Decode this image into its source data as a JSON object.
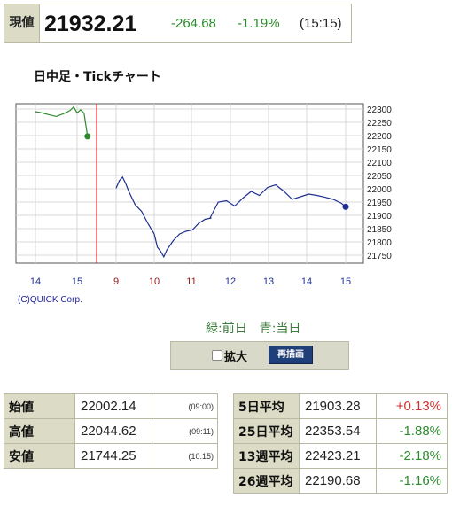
{
  "header": {
    "label": "現値",
    "price": "21932.21",
    "change": "-264.68",
    "change_pct": "-1.19%",
    "time": "(15:15)"
  },
  "chart_title": "日中足・Tickチャート",
  "chart_data": {
    "type": "line",
    "ylim": [
      21720,
      22320
    ],
    "yticks": [
      "22300",
      "22250",
      "22200",
      "22150",
      "22100",
      "22050",
      "22000",
      "21950",
      "21900",
      "21850",
      "21800",
      "21750"
    ],
    "xticks": [
      "14",
      "15",
      "9",
      "10",
      "11",
      "12",
      "13",
      "14",
      "15"
    ],
    "grid": true,
    "series": [
      {
        "name": "前日",
        "color": "#2e8b2e",
        "x": [
          "14:00",
          "14:10",
          "14:20",
          "14:30",
          "14:40",
          "14:45",
          "14:50",
          "14:55",
          "15:00",
          "15:05",
          "15:10",
          "15:15"
        ],
        "y": [
          22290,
          22285,
          22278,
          22272,
          22282,
          22288,
          22295,
          22308,
          22285,
          22297,
          22285,
          22197
        ]
      },
      {
        "name": "当日",
        "color": "#1f2f8f",
        "x": [
          "09:00",
          "09:05",
          "09:10",
          "09:15",
          "09:20",
          "09:30",
          "09:40",
          "09:50",
          "10:00",
          "10:05",
          "10:10",
          "10:15",
          "10:20",
          "10:30",
          "10:40",
          "10:50",
          "11:00",
          "11:10",
          "11:20",
          "11:30",
          "12:30",
          "12:35",
          "12:40",
          "12:50",
          "13:00",
          "13:10",
          "13:20",
          "13:30",
          "13:40",
          "13:50",
          "14:00",
          "14:10",
          "14:20",
          "14:30",
          "14:40",
          "14:50",
          "15:00",
          "15:10",
          "15:15"
        ],
        "y": [
          22002,
          22030,
          22044,
          22020,
          21990,
          21940,
          21915,
          21870,
          21830,
          21780,
          21765,
          21744,
          21770,
          21805,
          21830,
          21840,
          21845,
          21870,
          21885,
          21890,
          21890,
          21920,
          21950,
          21955,
          21935,
          21965,
          21990,
          21975,
          22005,
          22015,
          21990,
          21960,
          21970,
          21980,
          21975,
          21968,
          21960,
          21945,
          21932
        ]
      }
    ]
  },
  "copyright": "(C)QUICK Corp.",
  "legend": {
    "prev": "緑:前日",
    "today": "青:当日"
  },
  "zoom": {
    "label": "拡大",
    "button": "再描画"
  },
  "stats_left": [
    {
      "key": "始値",
      "value": "22002.14",
      "time": "(09:00)"
    },
    {
      "key": "高値",
      "value": "22044.62",
      "time": "(09:11)"
    },
    {
      "key": "安値",
      "value": "21744.25",
      "time": "(10:15)"
    }
  ],
  "stats_right": [
    {
      "key": "5日平均",
      "value": "21903.28",
      "change": "+0.13%"
    },
    {
      "key": "25日平均",
      "value": "22353.54",
      "change": "-1.88%"
    },
    {
      "key": "13週平均",
      "value": "22423.21",
      "change": "-2.18%"
    },
    {
      "key": "26週平均",
      "value": "22190.68",
      "change": "-1.16%"
    }
  ],
  "colors": {
    "prev": "#2e8b2e",
    "today": "#1f2f8f",
    "gap": "#ff0000"
  }
}
